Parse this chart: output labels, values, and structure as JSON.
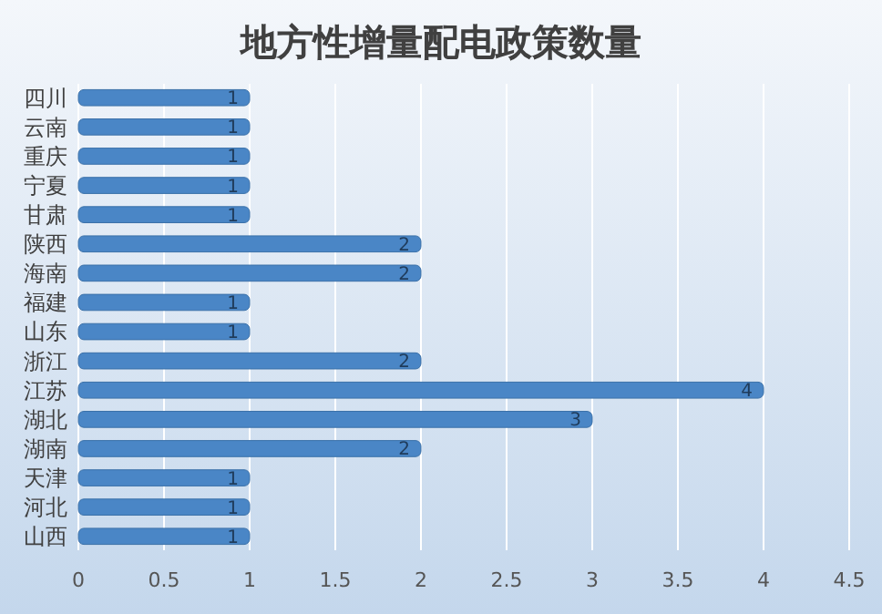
{
  "chart_data": {
    "type": "bar",
    "orientation": "horizontal",
    "title": "地方性增量配电政策数量",
    "categories": [
      "四川",
      "云南",
      "重庆",
      "宁夏",
      "甘肃",
      "陕西",
      "海南",
      "福建",
      "山东",
      "浙江",
      "江苏",
      "湖北",
      "湖南",
      "天津",
      "河北",
      "山西"
    ],
    "values": [
      1,
      1,
      1,
      1,
      1,
      2,
      2,
      1,
      1,
      2,
      4,
      3,
      2,
      1,
      1,
      1
    ],
    "color": "#4a86c6",
    "xlim": [
      0,
      4.5
    ],
    "xticks": [
      0,
      0.5,
      1,
      1.5,
      2,
      2.5,
      3,
      3.5,
      4,
      4.5
    ],
    "grid": "x",
    "data_labels": true
  }
}
